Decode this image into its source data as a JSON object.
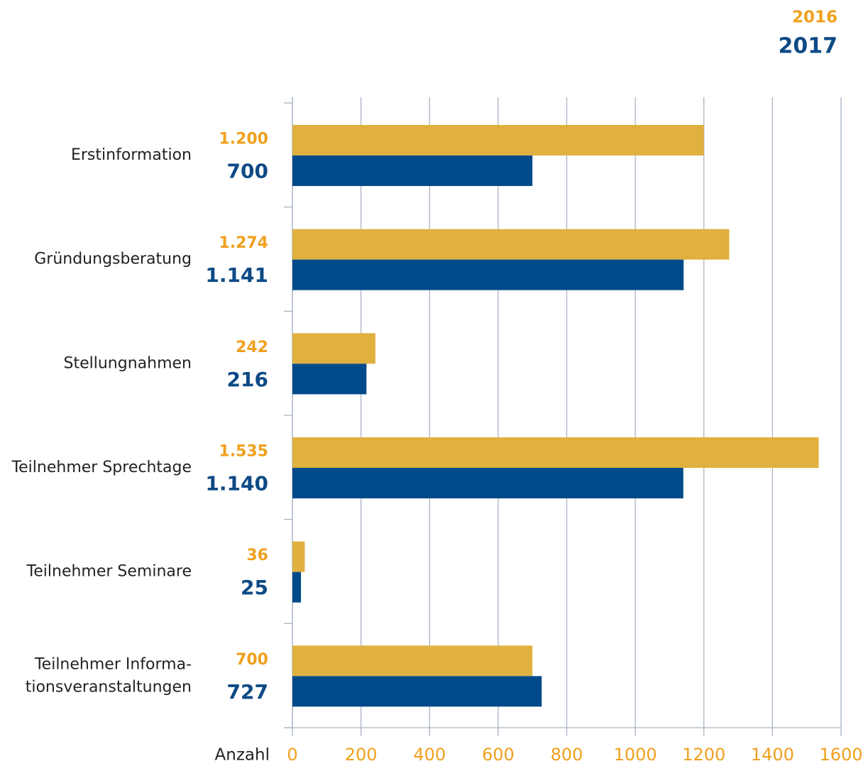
{
  "chart_data": {
    "type": "bar",
    "orientation": "horizontal",
    "categories": [
      "Erstinformation",
      "Gründungsberatung",
      "Stellungnahmen",
      "Teilnehmer Sprechtage",
      "Teilnehmer Seminare",
      "Teilnehmer Informa-\ntionsveranstaltungen"
    ],
    "series": [
      {
        "name": "2016",
        "color": "#e0b040",
        "label_color": "#f0a01e",
        "values": [
          1200,
          1274,
          242,
          1535,
          36,
          700
        ],
        "value_labels": [
          "1.200",
          "1.274",
          "242",
          "1.535",
          "36",
          "700"
        ]
      },
      {
        "name": "2017",
        "color": "#004a8a",
        "label_color": "#0d4a85",
        "values": [
          700,
          1141,
          216,
          1140,
          25,
          727
        ],
        "value_labels": [
          "700",
          "1.141",
          "216",
          "1.140",
          "25",
          "727"
        ]
      }
    ],
    "x_label": "Anzahl",
    "xlim": [
      0,
      1600
    ],
    "xticks": [
      0,
      200,
      400,
      600,
      800,
      1000,
      1200,
      1400,
      1600
    ],
    "grid": true,
    "legend": "upper right"
  }
}
